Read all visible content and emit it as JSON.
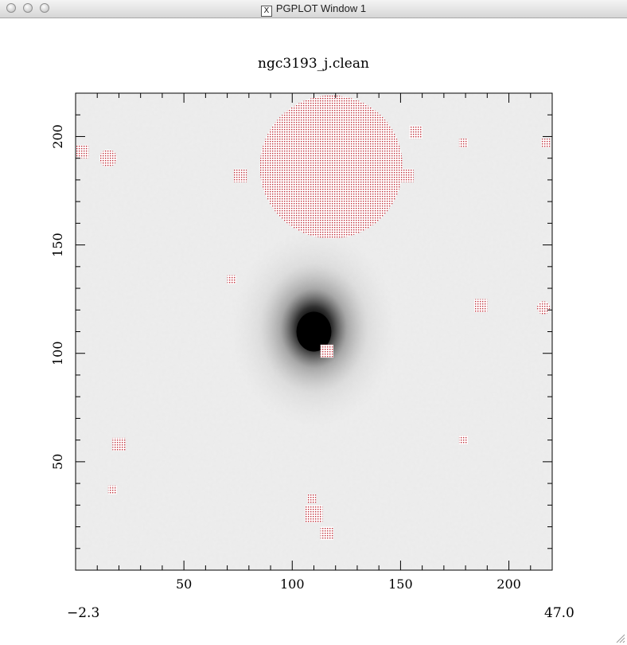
{
  "window": {
    "title": "PGPLOT Window 1",
    "x_icon": "x11-icon"
  },
  "plot": {
    "title": "ngc3193_j.clean",
    "x_ticks": [
      "50",
      "100",
      "150",
      "200"
    ],
    "y_ticks": [
      "50",
      "100",
      "150",
      "200"
    ],
    "x_tick_values": [
      50,
      100,
      150,
      200
    ],
    "y_tick_values": [
      50,
      100,
      150,
      200
    ],
    "xlim": [
      0,
      220
    ],
    "ylim": [
      0,
      220
    ],
    "range_min": "−2.3",
    "range_max": "47.0",
    "mask_color": "#c0303a",
    "galaxy_center": [
      110,
      110
    ],
    "masked_regions": [
      {
        "shape": "circle",
        "x": 118,
        "y": 186,
        "r": 33
      },
      {
        "shape": "circle",
        "x": 15,
        "y": 190,
        "r": 4
      },
      {
        "shape": "square",
        "x": 3,
        "y": 193,
        "r": 3
      },
      {
        "shape": "square",
        "x": 76,
        "y": 182,
        "r": 3
      },
      {
        "shape": "square",
        "x": 153,
        "y": 182,
        "r": 3
      },
      {
        "shape": "square",
        "x": 157,
        "y": 202,
        "r": 3
      },
      {
        "shape": "square",
        "x": 179,
        "y": 197,
        "r": 2
      },
      {
        "shape": "square",
        "x": 217,
        "y": 197,
        "r": 2
      },
      {
        "shape": "square",
        "x": 72,
        "y": 134,
        "r": 2
      },
      {
        "shape": "square",
        "x": 187,
        "y": 122,
        "r": 3
      },
      {
        "shape": "circle",
        "x": 216,
        "y": 121,
        "r": 3
      },
      {
        "shape": "square",
        "x": 116,
        "y": 101,
        "r": 3
      },
      {
        "shape": "square",
        "x": 20,
        "y": 58,
        "r": 3
      },
      {
        "shape": "square",
        "x": 179,
        "y": 60,
        "r": 2
      },
      {
        "shape": "square",
        "x": 17,
        "y": 37,
        "r": 2
      },
      {
        "shape": "square",
        "x": 109,
        "y": 33,
        "r": 2
      },
      {
        "shape": "square",
        "x": 110,
        "y": 26,
        "r": 4
      },
      {
        "shape": "square",
        "x": 116,
        "y": 17,
        "r": 3
      }
    ]
  }
}
